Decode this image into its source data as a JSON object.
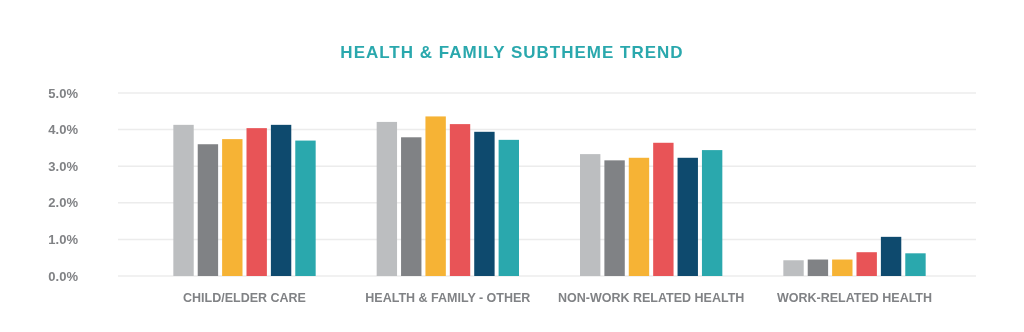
{
  "chart_data": {
    "type": "bar",
    "title": "HEALTH & FAMILY SUBTHEME TREND",
    "categories": [
      "CHILD/ELDER CARE",
      "HEALTH & FAMILY - OTHER",
      "NON-WORK RELATED HEALTH",
      "WORK-RELATED HEALTH"
    ],
    "series": [
      {
        "color": "#bcbec0",
        "values": [
          4.13,
          4.21,
          3.33,
          0.43
        ]
      },
      {
        "color": "#808285",
        "values": [
          3.6,
          3.79,
          3.16,
          0.45
        ]
      },
      {
        "color": "#f6b335",
        "values": [
          3.74,
          4.36,
          3.23,
          0.45
        ]
      },
      {
        "color": "#e85457",
        "values": [
          4.04,
          4.15,
          3.64,
          0.65
        ]
      },
      {
        "color": "#0e4a6e",
        "values": [
          4.13,
          3.94,
          3.23,
          1.07
        ]
      },
      {
        "color": "#2aa8ad",
        "values": [
          3.7,
          3.72,
          3.44,
          0.62
        ]
      }
    ],
    "ylim": [
      0,
      5
    ],
    "yticks": [
      {
        "value": 0,
        "label": "0.0%"
      },
      {
        "value": 1,
        "label": "1.0%"
      },
      {
        "value": 2,
        "label": "2.0%"
      },
      {
        "value": 3,
        "label": "3.0%"
      },
      {
        "value": 4,
        "label": "4.0%"
      },
      {
        "value": 5,
        "label": "5.0%"
      }
    ],
    "grid": "y"
  }
}
